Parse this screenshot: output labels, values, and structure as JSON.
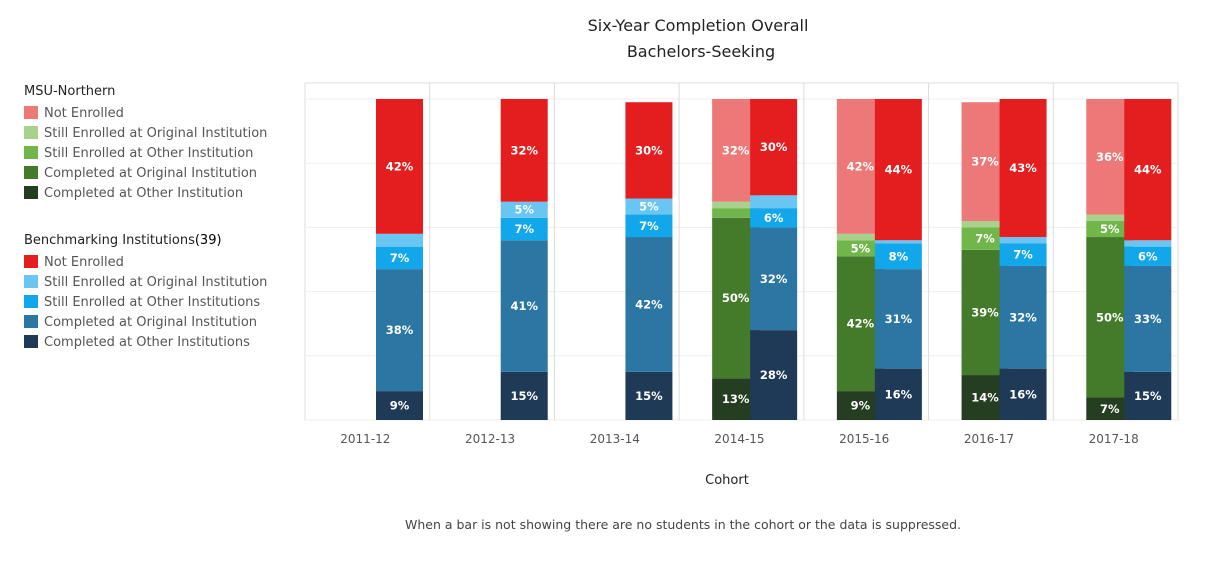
{
  "chart_data": {
    "type": "bar",
    "stacked": true,
    "title": "Six-Year Completion Overall",
    "subtitle": "Bachelors-Seeking",
    "xlabel": "Cohort",
    "ylabel": "",
    "ylim": [
      0,
      100
    ],
    "footnote": "When a bar is not showing there are no students in the cohort or the data is suppressed.",
    "categories": [
      "2011-12",
      "2012-13",
      "2013-14",
      "2014-15",
      "2015-16",
      "2016-17",
      "2017-18"
    ],
    "groups": [
      {
        "key": "msu",
        "title": "MSU-Northern",
        "segments": [
          {
            "name": "Completed at Other Institution",
            "color": "#253d20"
          },
          {
            "name": "Completed at Original Institution",
            "color": "#447b2b"
          },
          {
            "name": "Still Enrolled at Other Institution",
            "color": "#70b64a"
          },
          {
            "name": "Still Enrolled at Original Institution",
            "color": "#a8d28c"
          },
          {
            "name": "Not Enrolled",
            "color": "#ed7878"
          }
        ]
      },
      {
        "key": "bench",
        "title": "Benchmarking Institutions",
        "title_suffix": "(39)",
        "segments": [
          {
            "name": "Completed at Other Institutions",
            "color": "#1f3a56"
          },
          {
            "name": "Completed at Original Institution",
            "color": "#2c76a4"
          },
          {
            "name": "Still Enrolled at Other Institutions",
            "color": "#12a7ea"
          },
          {
            "name": "Still Enrolled at Original Institution",
            "color": "#69c6f3"
          },
          {
            "name": "Not Enrolled",
            "color": "#e41e1e"
          }
        ]
      }
    ],
    "legend_order": {
      "msu": [
        4,
        3,
        2,
        1,
        0
      ],
      "bench": [
        4,
        3,
        2,
        1,
        0
      ]
    },
    "series": [
      {
        "group": "msu",
        "values": [
          null,
          null,
          null,
          [
            13,
            50,
            3,
            2,
            32
          ],
          [
            9,
            42,
            5,
            2,
            42
          ],
          [
            14,
            39,
            7,
            2,
            37
          ],
          [
            7,
            50,
            5,
            2,
            36
          ]
        ]
      },
      {
        "group": "bench",
        "values": [
          [
            9,
            38,
            7,
            4,
            42
          ],
          [
            15,
            41,
            7,
            5,
            32
          ],
          [
            15,
            42,
            7,
            5,
            30
          ],
          [
            28,
            32,
            6,
            4,
            30
          ],
          [
            16,
            31,
            8,
            1,
            44
          ],
          [
            16,
            32,
            7,
            2,
            43
          ],
          [
            15,
            33,
            6,
            2,
            44
          ]
        ]
      }
    ]
  }
}
